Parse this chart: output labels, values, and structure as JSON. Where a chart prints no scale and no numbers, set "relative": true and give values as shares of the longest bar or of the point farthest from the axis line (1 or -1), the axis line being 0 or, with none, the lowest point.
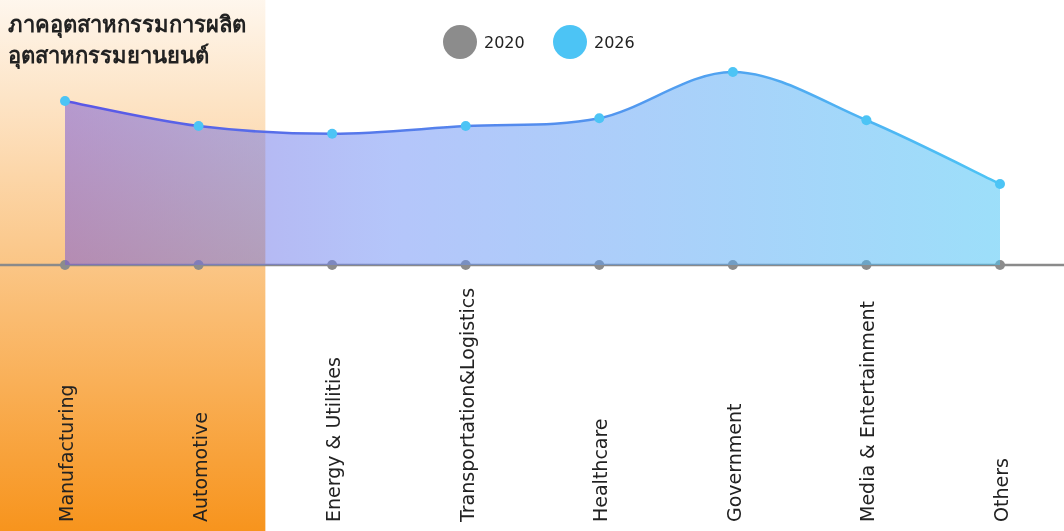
{
  "chart_data": {
    "type": "area",
    "relative": true,
    "categories": [
      "Manufacturing",
      "Automotive",
      "Energy & Utilities",
      "Transportation&Logistics",
      "Healthcare",
      "Government",
      "Media & Entertainment",
      "Others"
    ],
    "series": [
      {
        "name": "2020",
        "type": "scatter",
        "color": "#8c8c8c",
        "values": [
          0,
          0,
          0,
          0,
          0,
          0,
          0,
          0
        ]
      },
      {
        "name": "2026",
        "color": "#4cc4f5",
        "values": [
          0.85,
          0.72,
          0.68,
          0.72,
          0.76,
          1,
          0.75,
          0.42
        ]
      }
    ],
    "bands": [
      {
        "axis": "x",
        "from": "Manufacturing",
        "to": "Automotive",
        "label": "ภาคอุตสาหกรรมการผลิต อุตสาหกรรมยานยนต์",
        "color": "#f7941d"
      }
    ],
    "legend": "top",
    "marker": "circle"
  }
}
